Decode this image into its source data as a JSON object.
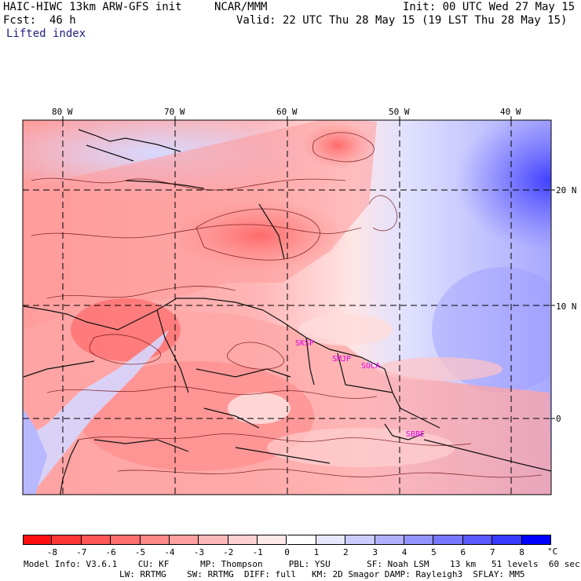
{
  "header": {
    "model": "HAIC-HIWC 13km ARW-GFS init",
    "org": "NCAR/MMM",
    "init": "Init: 00 UTC Wed 27 May 15",
    "fcst_label": "Fcst:",
    "fcst_hours": "46 h",
    "valid": "Valid: 22 UTC Thu 28 May 15 (19 LST Thu 28 May 15)",
    "field": "Lifted index"
  },
  "map": {
    "lon_labels": [
      "80 W",
      "70 W",
      "60 W",
      "50 W",
      "40 W"
    ],
    "lat_labels": [
      "20 N",
      "10 N",
      "0"
    ],
    "stations": [
      "SKSP",
      "SMJP",
      "SOCA",
      "SBBE"
    ],
    "station_color": "#e000e0"
  },
  "colorbar": {
    "labels": [
      "-8",
      "-7",
      "-6",
      "-5",
      "-4",
      "-3",
      "-2",
      "-1",
      "0",
      "1",
      "2",
      "3",
      "4",
      "5",
      "6",
      "7",
      "8"
    ],
    "unit": "°C",
    "colors": [
      "#ff1010",
      "#ff3636",
      "#ff5656",
      "#ff6e6e",
      "#ff8888",
      "#ffa0a0",
      "#ffb8b8",
      "#ffd0d0",
      "#ffe8e8",
      "#ffffff",
      "#e6e6ff",
      "#ccccff",
      "#b0b0ff",
      "#9494ff",
      "#7878ff",
      "#5a5aff",
      "#3a3aff",
      "#0000ff"
    ]
  },
  "footer": {
    "line1": "Model Info: V3.6.1    CU: KF      MP: Thompson     PBL: YSU       SF: Noah LSM    13 km   51 levels  60 sec",
    "line2": "LW: RRTMG    SW: RRTMG  DIFF: full   KM: 2D Smagor DAMP: Rayleigh3  SFLAY: MM5"
  }
}
